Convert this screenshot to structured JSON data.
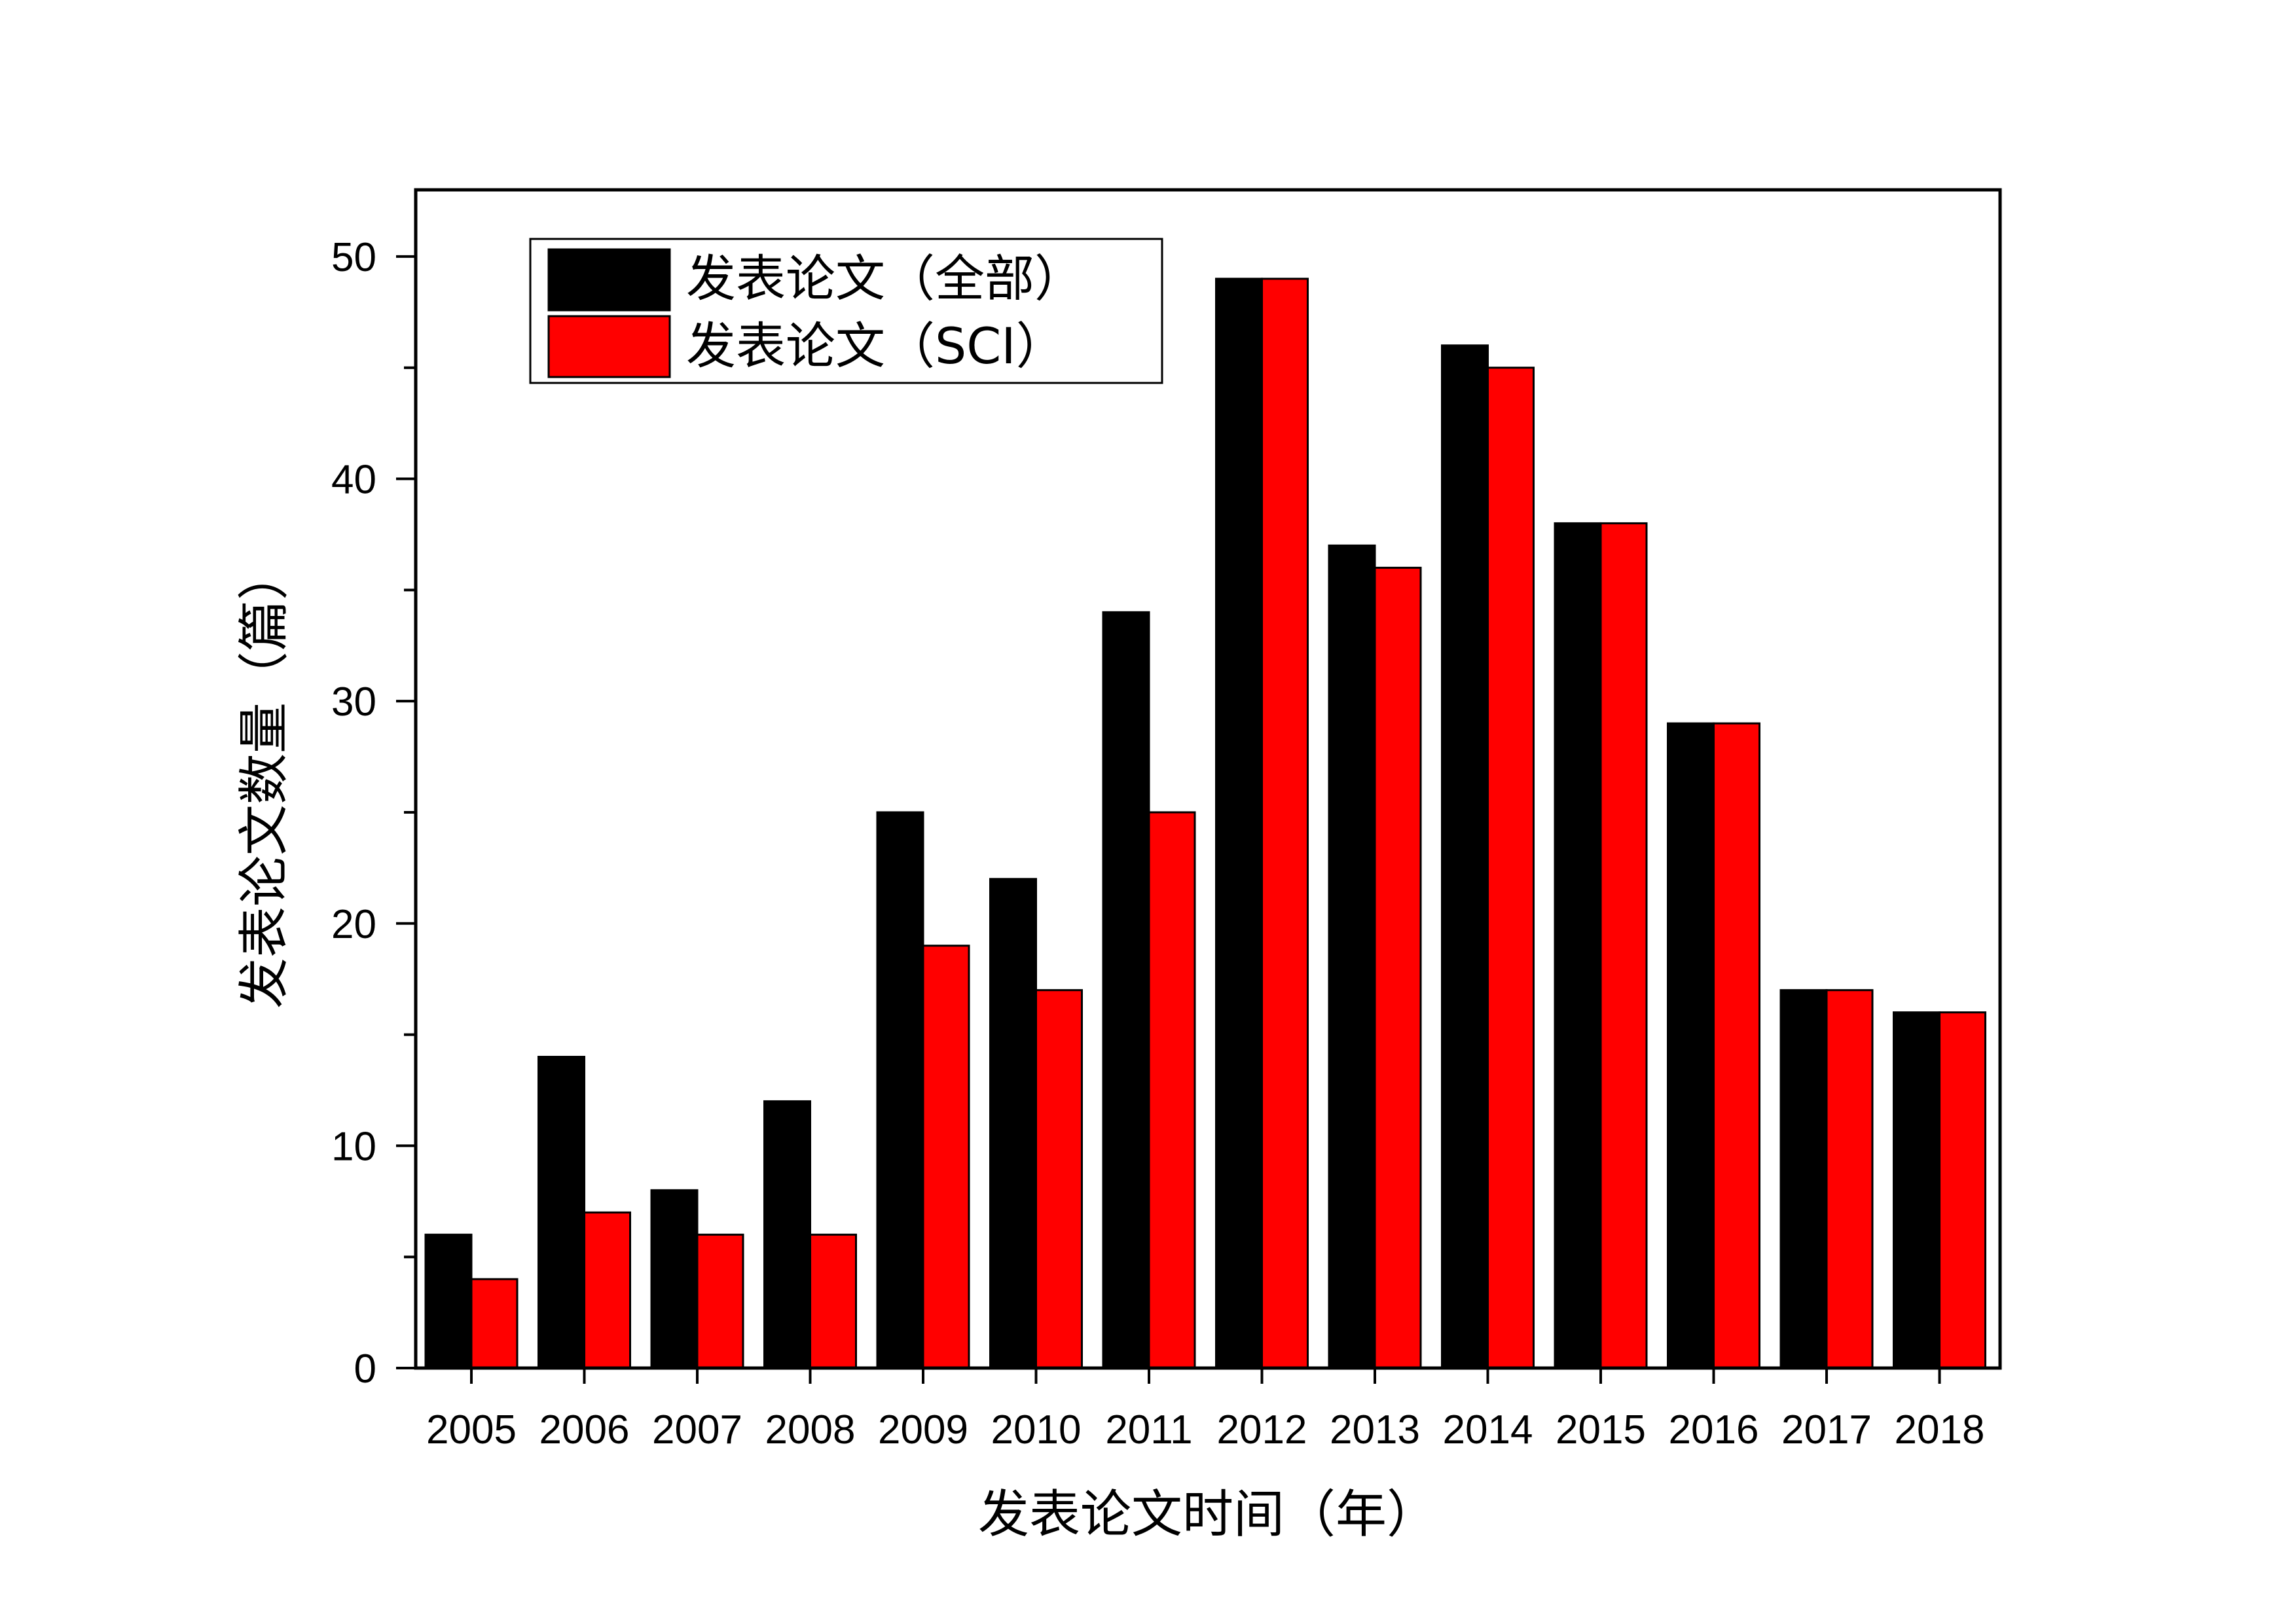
{
  "chart_data": {
    "type": "bar",
    "title": "",
    "xlabel": "发表论文时间（年）",
    "ylabel": "发表论文数量（篇）",
    "categories": [
      "2005",
      "2006",
      "2007",
      "2008",
      "2009",
      "2010",
      "2011",
      "2012",
      "2013",
      "2014",
      "2015",
      "2016",
      "2017",
      "2018"
    ],
    "series": [
      {
        "name": "发表论文（全部）",
        "color": "#000000",
        "values": [
          6,
          14,
          8,
          12,
          25,
          22,
          34,
          49,
          37,
          46,
          38,
          29,
          17,
          16
        ]
      },
      {
        "name": "发表论文（SCI）",
        "color": "#ff0000",
        "values": [
          4,
          7,
          6,
          6,
          19,
          17,
          25,
          49,
          36,
          45,
          38,
          29,
          17,
          16
        ]
      }
    ],
    "ylim": [
      0,
      53
    ],
    "yticks": [
      0,
      10,
      20,
      30,
      40,
      50
    ],
    "grid": false,
    "legend_position": "top-left"
  }
}
